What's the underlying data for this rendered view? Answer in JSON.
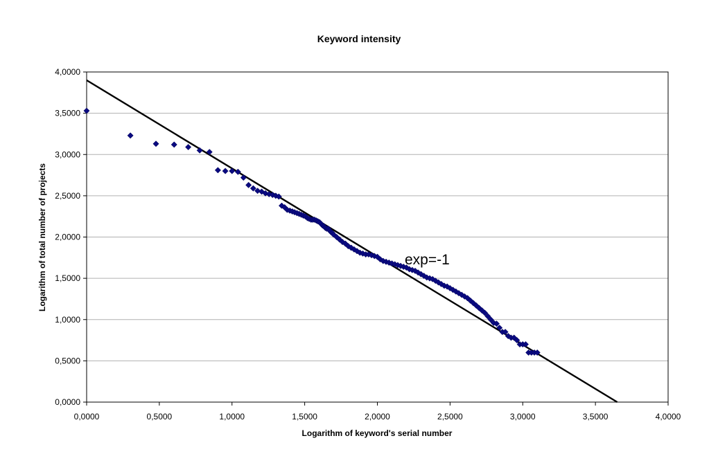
{
  "chart_data": {
    "type": "scatter",
    "title": "Keyword intensity",
    "xlabel": "Logarithm of keyword's serial number",
    "ylabel": "Logarithm of total number of projects",
    "xlim": [
      0,
      4
    ],
    "ylim": [
      0,
      4
    ],
    "xticks": [
      "0,0000",
      "0,5000",
      "1,0000",
      "1,5000",
      "2,0000",
      "2,5000",
      "3,0000",
      "3,5000",
      "4,0000"
    ],
    "yticks": [
      "0,0000",
      "0,5000",
      "1,0000",
      "1,5000",
      "2,0000",
      "2,5000",
      "3,0000",
      "3,5000",
      "4,0000"
    ],
    "grid": "horizontal",
    "legend": "none",
    "annotation": "exp=-1",
    "marker_color": "#0a0a80",
    "trendline": {
      "x": [
        0,
        3.65
      ],
      "y": [
        3.9,
        0
      ]
    },
    "series": [
      {
        "x": [
          0.0,
          0.301,
          0.477,
          0.602,
          0.699,
          0.778,
          0.845,
          0.903,
          0.954,
          1.0,
          1.041,
          1.079,
          1.114,
          1.146,
          1.176,
          1.204,
          1.23,
          1.255,
          1.279,
          1.301,
          1.322,
          1.342,
          1.362,
          1.38,
          1.398,
          1.415,
          1.431,
          1.447,
          1.462,
          1.477,
          1.491,
          1.505,
          1.519,
          1.531,
          1.544,
          1.556,
          1.568,
          1.58,
          1.591,
          1.602,
          1.613,
          1.623,
          1.633,
          1.643,
          1.653,
          1.663,
          1.672,
          1.681,
          1.69,
          1.699,
          1.72,
          1.74,
          1.76,
          1.78,
          1.8,
          1.82,
          1.84,
          1.86,
          1.88,
          1.9,
          1.92,
          1.94,
          1.96,
          1.98,
          2.0,
          2.02,
          2.04,
          2.06,
          2.08,
          2.1,
          2.12,
          2.14,
          2.16,
          2.18,
          2.2,
          2.22,
          2.24,
          2.26,
          2.28,
          2.3,
          2.32,
          2.34,
          2.36,
          2.38,
          2.4,
          2.42,
          2.44,
          2.46,
          2.48,
          2.5,
          2.52,
          2.54,
          2.56,
          2.58,
          2.6,
          2.62,
          2.64,
          2.66,
          2.68,
          2.7,
          2.72,
          2.74,
          2.76,
          2.78,
          2.8,
          2.82,
          2.84,
          2.86,
          2.88,
          2.9,
          2.92,
          2.94,
          2.96,
          2.98,
          3.0,
          3.02,
          3.04,
          3.06,
          3.08,
          3.1
        ],
        "y": [
          3.53,
          3.23,
          3.13,
          3.12,
          3.09,
          3.05,
          3.03,
          2.81,
          2.8,
          2.8,
          2.79,
          2.72,
          2.63,
          2.59,
          2.56,
          2.55,
          2.53,
          2.52,
          2.51,
          2.5,
          2.49,
          2.38,
          2.36,
          2.33,
          2.32,
          2.31,
          2.3,
          2.29,
          2.28,
          2.27,
          2.26,
          2.25,
          2.23,
          2.22,
          2.21,
          2.21,
          2.21,
          2.2,
          2.19,
          2.18,
          2.16,
          2.14,
          2.13,
          2.11,
          2.1,
          2.1,
          2.08,
          2.06,
          2.05,
          2.03,
          2.0,
          1.97,
          1.94,
          1.92,
          1.89,
          1.87,
          1.85,
          1.83,
          1.81,
          1.8,
          1.79,
          1.79,
          1.78,
          1.77,
          1.76,
          1.73,
          1.71,
          1.7,
          1.69,
          1.68,
          1.67,
          1.66,
          1.65,
          1.64,
          1.63,
          1.61,
          1.6,
          1.59,
          1.57,
          1.55,
          1.53,
          1.51,
          1.5,
          1.49,
          1.47,
          1.45,
          1.43,
          1.41,
          1.4,
          1.38,
          1.36,
          1.34,
          1.32,
          1.3,
          1.28,
          1.26,
          1.23,
          1.2,
          1.17,
          1.14,
          1.11,
          1.08,
          1.04,
          1.0,
          0.96,
          0.95,
          0.9,
          0.85,
          0.85,
          0.8,
          0.78,
          0.78,
          0.75,
          0.7,
          0.7,
          0.7,
          0.6,
          0.6,
          0.6,
          0.6
        ]
      }
    ]
  }
}
